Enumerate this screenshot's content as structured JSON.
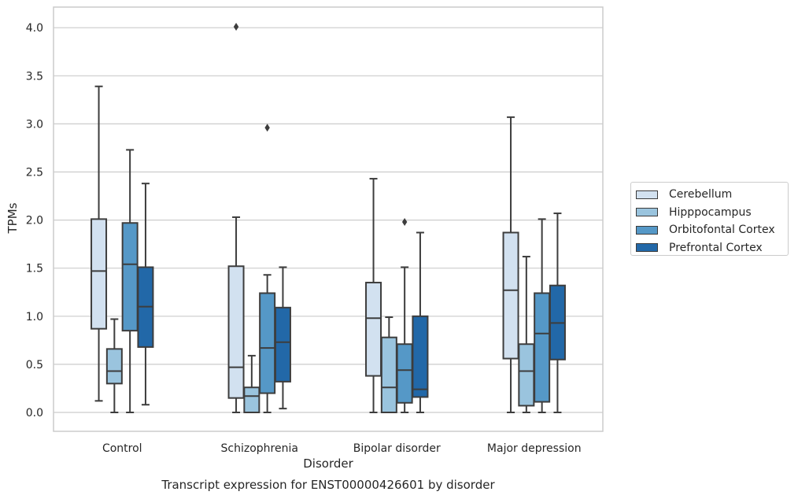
{
  "chart_data": {
    "type": "box",
    "xlabel": "Disorder",
    "ylabel": "TPMs",
    "caption": "Transcript expression for ENST00000426601 by disorder",
    "ylim": [
      -0.19,
      4.22
    ],
    "yticks": [
      "0.0",
      "0.5",
      "1.0",
      "1.5",
      "2.0",
      "2.5",
      "3.0",
      "3.5",
      "4.0"
    ],
    "grid": "horizontal",
    "legend_position": "right",
    "categories": [
      "Control",
      "Schizophrenia",
      "Bipolar disorder",
      "Major depression"
    ],
    "series": [
      {
        "name": "Cerebellum",
        "color": "#d2e1f0",
        "boxes": [
          {
            "whislo": 0.12,
            "q1": 0.87,
            "med": 1.47,
            "q3": 2.01,
            "whishi": 3.39,
            "fliers": []
          },
          {
            "whislo": 0.0,
            "q1": 0.15,
            "med": 0.47,
            "q3": 1.52,
            "whishi": 2.03,
            "fliers": [
              4.01
            ]
          },
          {
            "whislo": 0.0,
            "q1": 0.38,
            "med": 0.98,
            "q3": 1.35,
            "whishi": 2.43,
            "fliers": []
          },
          {
            "whislo": 0.0,
            "q1": 0.56,
            "med": 1.27,
            "q3": 1.87,
            "whishi": 3.07,
            "fliers": []
          }
        ]
      },
      {
        "name": "Hipppocampus",
        "color": "#9ac4de",
        "boxes": [
          {
            "whislo": 0.0,
            "q1": 0.3,
            "med": 0.43,
            "q3": 0.66,
            "whishi": 0.97,
            "fliers": []
          },
          {
            "whislo": 0.0,
            "q1": 0.0,
            "med": 0.17,
            "q3": 0.26,
            "whishi": 0.59,
            "fliers": []
          },
          {
            "whislo": 0.0,
            "q1": 0.0,
            "med": 0.26,
            "q3": 0.78,
            "whishi": 0.99,
            "fliers": []
          },
          {
            "whislo": 0.0,
            "q1": 0.07,
            "med": 0.43,
            "q3": 0.71,
            "whishi": 1.62,
            "fliers": []
          }
        ]
      },
      {
        "name": "Orbitofontal Cortex",
        "color": "#5598c7",
        "boxes": [
          {
            "whislo": 0.0,
            "q1": 0.85,
            "med": 1.54,
            "q3": 1.97,
            "whishi": 2.73,
            "fliers": []
          },
          {
            "whislo": 0.0,
            "q1": 0.2,
            "med": 0.67,
            "q3": 1.24,
            "whishi": 1.43,
            "fliers": [
              2.96
            ]
          },
          {
            "whislo": 0.0,
            "q1": 0.1,
            "med": 0.44,
            "q3": 0.71,
            "whishi": 1.51,
            "fliers": [
              1.98
            ]
          },
          {
            "whislo": 0.0,
            "q1": 0.11,
            "med": 0.82,
            "q3": 1.24,
            "whishi": 2.01,
            "fliers": []
          }
        ]
      },
      {
        "name": "Prefrontal Cortex",
        "color": "#2268a8",
        "boxes": [
          {
            "whislo": 0.08,
            "q1": 0.68,
            "med": 1.1,
            "q3": 1.51,
            "whishi": 2.38,
            "fliers": []
          },
          {
            "whislo": 0.04,
            "q1": 0.32,
            "med": 0.73,
            "q3": 1.09,
            "whishi": 1.51,
            "fliers": []
          },
          {
            "whislo": 0.0,
            "q1": 0.16,
            "med": 0.24,
            "q3": 1.0,
            "whishi": 1.87,
            "fliers": []
          },
          {
            "whislo": 0.0,
            "q1": 0.55,
            "med": 0.93,
            "q3": 1.32,
            "whishi": 2.07,
            "fliers": []
          }
        ]
      }
    ]
  }
}
